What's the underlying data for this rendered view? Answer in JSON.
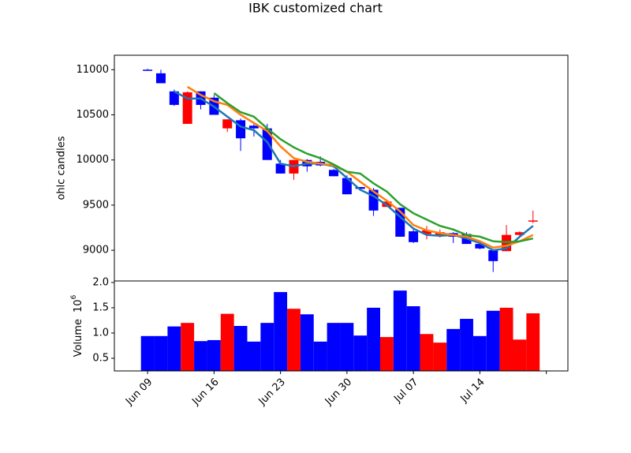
{
  "chart_data": {
    "type": "candlestick",
    "title": "IBK customized chart",
    "ylabel": "ohlc candles",
    "categories": [
      "Jun 09",
      null,
      null,
      null,
      null,
      "Jun 16",
      null,
      null,
      null,
      null,
      "Jun 23",
      null,
      null,
      null,
      null,
      "Jun 30",
      null,
      null,
      null,
      null,
      "Jul 07",
      null,
      null,
      null,
      null,
      "Jul 14",
      null,
      null,
      null,
      null
    ],
    "open": [
      11000,
      10960,
      10760,
      10400,
      10760,
      10690,
      10350,
      10440,
      10380,
      10350,
      9960,
      9850,
      10000,
      9980,
      9890,
      9800,
      9700,
      9670,
      9480,
      9470,
      9210,
      9180,
      9160,
      9190,
      9180,
      9070,
      9000,
      8990,
      9170,
      9320
    ],
    "high": [
      11010,
      11000,
      10780,
      10760,
      10760,
      10720,
      10450,
      10460,
      10400,
      10400,
      10000,
      10000,
      10010,
      10040,
      9900,
      9830,
      9700,
      9690,
      9560,
      9470,
      9250,
      9270,
      9230,
      9200,
      9200,
      9080,
      9000,
      9280,
      9210,
      9440
    ],
    "low": [
      10990,
      10850,
      10600,
      10400,
      10560,
      10500,
      10310,
      10100,
      10260,
      10000,
      9850,
      9780,
      9870,
      9930,
      9820,
      9620,
      9660,
      9380,
      9480,
      9150,
      9080,
      9120,
      9140,
      9080,
      9070,
      9010,
      8760,
      8990,
      9150,
      9300
    ],
    "close": [
      10995,
      10850,
      10610,
      10750,
      10610,
      10500,
      10450,
      10240,
      10350,
      10000,
      9850,
      10000,
      9930,
      9940,
      9820,
      9620,
      9680,
      9440,
      9540,
      9150,
      9090,
      9220,
      9200,
      9150,
      9070,
      9020,
      8880,
      9170,
      9200,
      9330
    ],
    "up_color": "#ff0000",
    "down_color": "#0000ff",
    "ma_lines": [
      {
        "color": "#1f77b4",
        "values": [
          null,
          null,
          10760,
          10680,
          10680,
          10590,
          10480,
          10370,
          10330,
          10200,
          9960,
          9930,
          9960,
          9960,
          9930,
          9800,
          9670,
          9600,
          9500,
          9370,
          9240,
          9170,
          9160,
          9170,
          9130,
          9080,
          9000,
          9020,
          9150,
          9270
        ]
      },
      {
        "color": "#ff7f0e",
        "values": [
          null,
          null,
          null,
          10810,
          10720,
          10650,
          10610,
          10500,
          10410,
          10320,
          10150,
          10020,
          9980,
          9960,
          9940,
          9870,
          9760,
          9650,
          9550,
          9430,
          9280,
          9220,
          9190,
          9170,
          9150,
          9100,
          9030,
          9050,
          9100,
          9170
        ]
      },
      {
        "color": "#2ca02c",
        "values": [
          null,
          null,
          null,
          null,
          null,
          10740,
          10630,
          10530,
          10480,
          10350,
          10230,
          10140,
          10070,
          10020,
          9950,
          9870,
          9850,
          9740,
          9650,
          9510,
          9410,
          9340,
          9270,
          9230,
          9170,
          9150,
          9100,
          9090,
          9100,
          9130
        ]
      }
    ],
    "ylim": [
      8660,
      11160
    ],
    "yticks": [
      9000,
      9500,
      10000,
      10500,
      11000
    ],
    "volume_ylabel": "Volume",
    "volume_offset_base": "10",
    "volume_offset_exp": "6",
    "volume": [
      0.94,
      0.94,
      1.13,
      1.2,
      0.84,
      0.86,
      1.38,
      1.14,
      0.83,
      1.2,
      1.81,
      1.48,
      1.37,
      0.83,
      1.2,
      1.2,
      0.95,
      1.5,
      0.92,
      1.84,
      1.53,
      0.98,
      0.81,
      1.08,
      1.28,
      0.94,
      1.44,
      1.5,
      0.87,
      1.39
    ],
    "volume_ylim": [
      0.25,
      2.03
    ],
    "volume_yticks": [
      0.5,
      {
        "value": 1.0,
        "label": "1.0"
      },
      1.5,
      {
        "value": 2.0,
        "label": "2.0"
      }
    ]
  }
}
